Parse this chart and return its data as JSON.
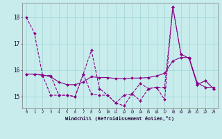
{
  "xlabel": "Windchill (Refroidissement éolien,°C)",
  "xlim_min": -0.5,
  "xlim_max": 23.5,
  "ylim_min": 14.55,
  "ylim_max": 18.55,
  "yticks": [
    15,
    16,
    17,
    18
  ],
  "xticks": [
    0,
    1,
    2,
    3,
    4,
    5,
    6,
    7,
    8,
    9,
    10,
    11,
    12,
    13,
    14,
    15,
    16,
    17,
    18,
    19,
    20,
    21,
    22,
    23
  ],
  "bg_color": "#c8ecec",
  "grid_color": "#9ed4d4",
  "line_color": "#880088",
  "line_a": [
    18.0,
    17.4,
    15.8,
    15.8,
    15.05,
    15.05,
    15.0,
    15.85,
    16.75,
    15.3,
    15.05,
    14.75,
    14.65,
    15.1,
    14.85,
    15.3,
    15.35,
    15.35,
    18.4,
    16.6,
    16.45,
    15.45,
    15.6,
    15.3
  ],
  "line_b": [
    15.85,
    15.85,
    15.82,
    15.75,
    15.55,
    15.45,
    15.45,
    15.55,
    15.75,
    15.72,
    15.72,
    15.68,
    15.68,
    15.7,
    15.7,
    15.72,
    15.78,
    15.88,
    16.35,
    16.48,
    16.48,
    15.52,
    15.35,
    15.35
  ],
  "line_c": [
    15.85,
    15.85,
    15.8,
    15.05,
    15.05,
    15.05,
    15.0,
    15.85,
    15.1,
    15.05,
    15.05,
    14.75,
    15.05,
    15.1,
    15.5,
    15.3,
    15.35,
    14.88,
    18.4,
    16.6,
    16.45,
    15.45,
    15.6,
    15.3
  ]
}
